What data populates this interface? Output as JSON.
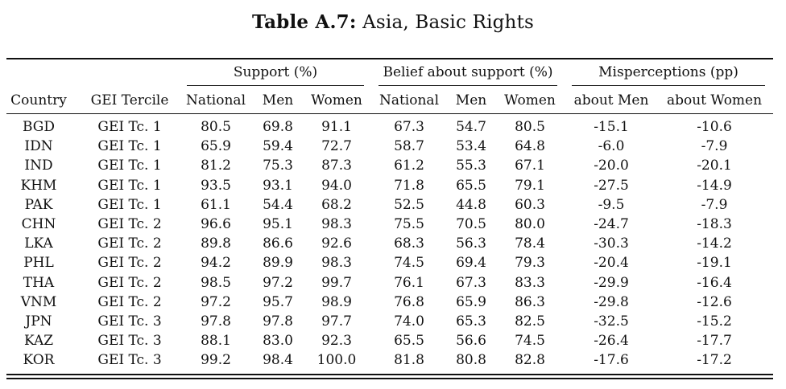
{
  "caption": {
    "label": "Table A.7:",
    "title": "Asia, Basic Rights"
  },
  "table": {
    "group_headers": [
      "Support (%)",
      "Belief about support (%)",
      "Misperceptions (pp)"
    ],
    "columns": [
      "Country",
      "GEI Tercile",
      "National",
      "Men",
      "Women",
      "National",
      "Men",
      "Women",
      "about Men",
      "about Women"
    ],
    "rows": [
      [
        "BGD",
        "GEI Tc. 1",
        "80.5",
        "69.8",
        "91.1",
        "67.3",
        "54.7",
        "80.5",
        "-15.1",
        "-10.6"
      ],
      [
        "IDN",
        "GEI Tc. 1",
        "65.9",
        "59.4",
        "72.7",
        "58.7",
        "53.4",
        "64.8",
        "-6.0",
        "-7.9"
      ],
      [
        "IND",
        "GEI Tc. 1",
        "81.2",
        "75.3",
        "87.3",
        "61.2",
        "55.3",
        "67.1",
        "-20.0",
        "-20.1"
      ],
      [
        "KHM",
        "GEI Tc. 1",
        "93.5",
        "93.1",
        "94.0",
        "71.8",
        "65.5",
        "79.1",
        "-27.5",
        "-14.9"
      ],
      [
        "PAK",
        "GEI Tc. 1",
        "61.1",
        "54.4",
        "68.2",
        "52.5",
        "44.8",
        "60.3",
        "-9.5",
        "-7.9"
      ],
      [
        "CHN",
        "GEI Tc. 2",
        "96.6",
        "95.1",
        "98.3",
        "75.5",
        "70.5",
        "80.0",
        "-24.7",
        "-18.3"
      ],
      [
        "LKA",
        "GEI Tc. 2",
        "89.8",
        "86.6",
        "92.6",
        "68.3",
        "56.3",
        "78.4",
        "-30.3",
        "-14.2"
      ],
      [
        "PHL",
        "GEI Tc. 2",
        "94.2",
        "89.9",
        "98.3",
        "74.5",
        "69.4",
        "79.3",
        "-20.4",
        "-19.1"
      ],
      [
        "THA",
        "GEI Tc. 2",
        "98.5",
        "97.2",
        "99.7",
        "76.1",
        "67.3",
        "83.3",
        "-29.9",
        "-16.4"
      ],
      [
        "VNM",
        "GEI Tc. 2",
        "97.2",
        "95.7",
        "98.9",
        "76.8",
        "65.9",
        "86.3",
        "-29.8",
        "-12.6"
      ],
      [
        "JPN",
        "GEI Tc. 3",
        "97.8",
        "97.8",
        "97.7",
        "74.0",
        "65.3",
        "82.5",
        "-32.5",
        "-15.2"
      ],
      [
        "KAZ",
        "GEI Tc. 3",
        "88.1",
        "83.0",
        "92.3",
        "65.5",
        "56.6",
        "74.5",
        "-26.4",
        "-17.7"
      ],
      [
        "KOR",
        "GEI Tc. 3",
        "99.2",
        "98.4",
        "100.0",
        "81.8",
        "80.8",
        "82.8",
        "-17.6",
        "-17.2"
      ]
    ]
  }
}
